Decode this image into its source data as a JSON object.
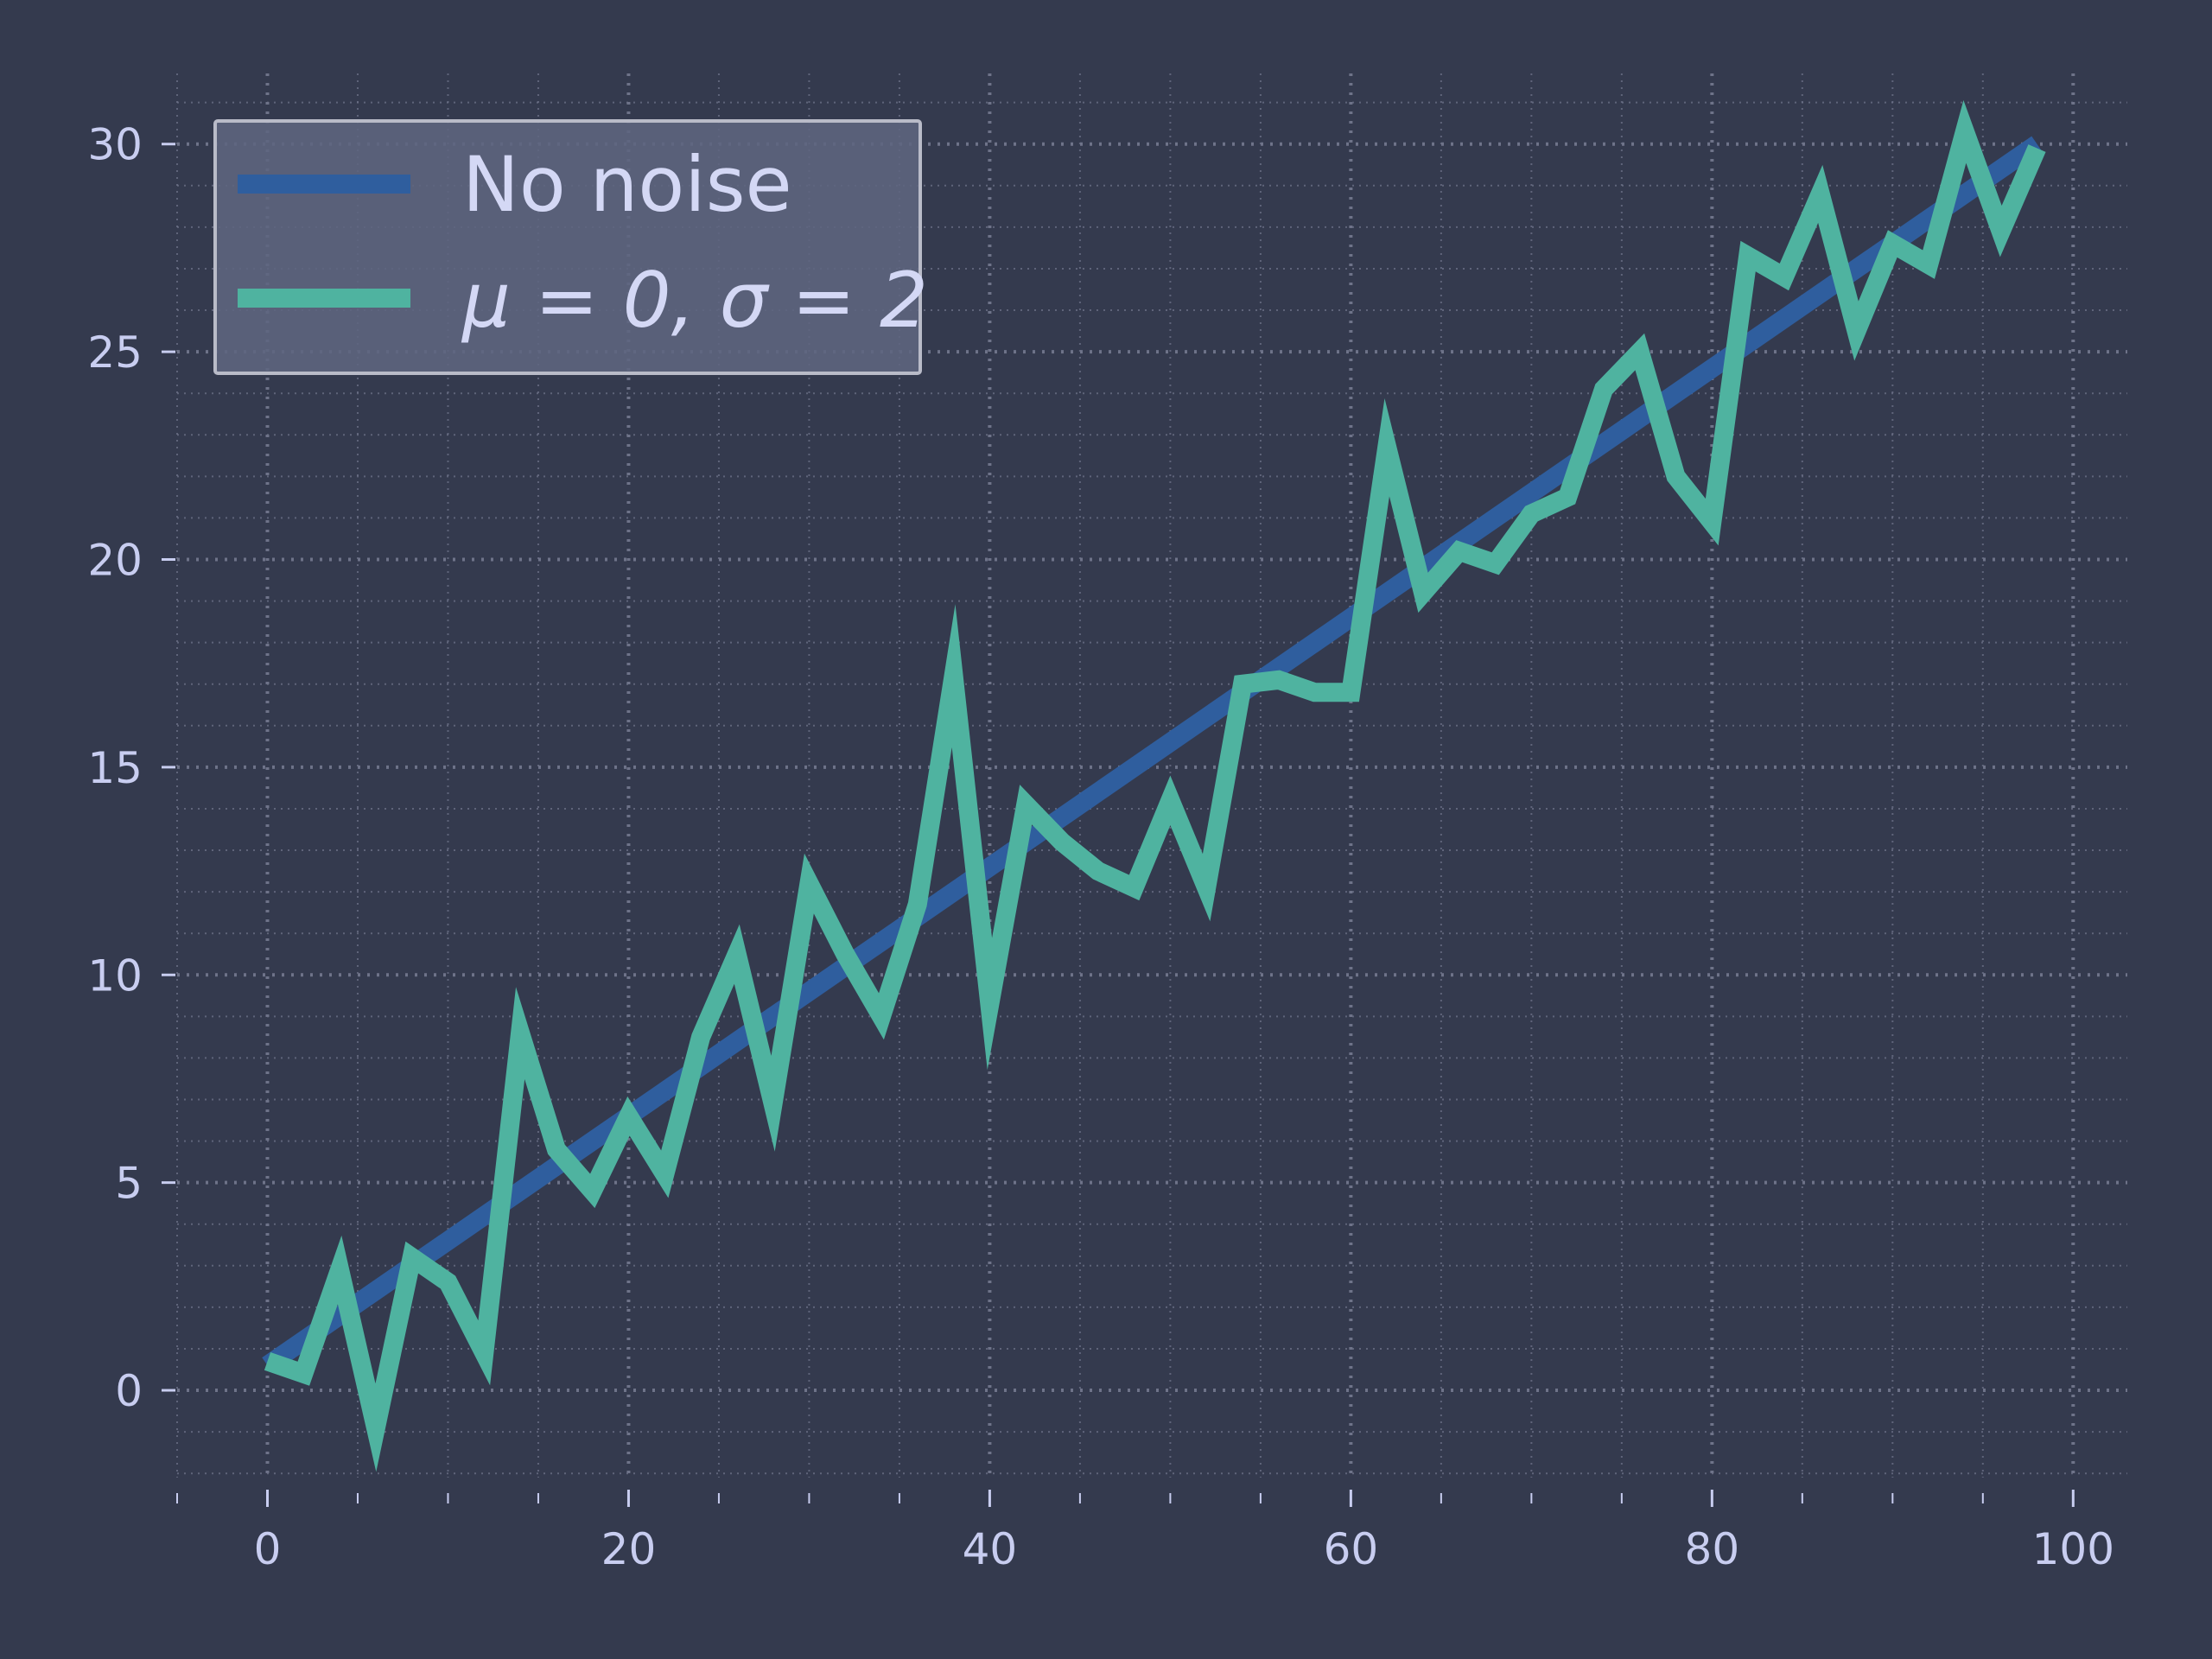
{
  "chart_data": {
    "type": "line",
    "title": "",
    "xlabel": "",
    "ylabel": "",
    "xlim": [
      -5,
      103
    ],
    "ylim": [
      -2.1,
      31.7
    ],
    "xticks": [
      0,
      20,
      40,
      60,
      80,
      100
    ],
    "yticks": [
      0,
      5,
      10,
      15,
      20,
      25,
      30
    ],
    "x_minor_step": 5,
    "y_minor_step": 1,
    "grid": true,
    "legend_position": "top-left",
    "colors": {
      "background": "#343a4e",
      "grid": "#6e7389",
      "text": "#c8cdf0",
      "legend_bg": "#5f6580",
      "legend_border": "#b9bbc8"
    },
    "series": [
      {
        "name": "No noise",
        "color": "#2f5e9e",
        "x": [
          0,
          98
        ],
        "y": [
          0.6,
          30.0
        ]
      },
      {
        "name": "μ = 0, σ = 2",
        "color": "#4fb3a0",
        "x": [
          0,
          2,
          4,
          6,
          8,
          10,
          12,
          14,
          16,
          18,
          20,
          22,
          24,
          26,
          28,
          30,
          32,
          34,
          36,
          38,
          40,
          42,
          44,
          46,
          48,
          50,
          52,
          54,
          56,
          58,
          60,
          62,
          64,
          66,
          68,
          70,
          72,
          74,
          76,
          78,
          80,
          82,
          84,
          86,
          88,
          90,
          92,
          94,
          96,
          98
        ],
        "y": [
          0.7,
          0.4,
          2.9,
          -0.9,
          3.2,
          2.6,
          0.9,
          8.6,
          5.8,
          4.8,
          6.6,
          5.2,
          8.5,
          10.5,
          6.9,
          12.2,
          10.5,
          9.0,
          11.7,
          17.2,
          9.3,
          14.1,
          13.2,
          12.5,
          12.1,
          14.2,
          12.1,
          17.0,
          17.1,
          16.8,
          16.8,
          22.7,
          19.2,
          20.2,
          19.9,
          21.1,
          21.5,
          24.1,
          25.0,
          22.0,
          20.9,
          27.3,
          26.8,
          28.8,
          25.5,
          27.6,
          27.1,
          30.3,
          27.9,
          29.9
        ]
      }
    ]
  }
}
